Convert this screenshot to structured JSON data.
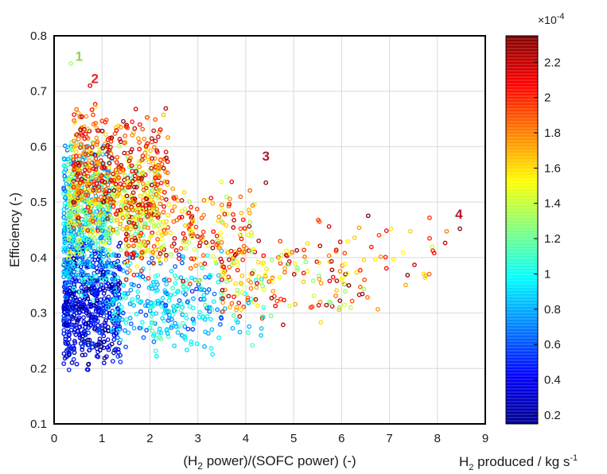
{
  "chart_data": {
    "type": "scatter",
    "title": "",
    "xlabel": {
      "pre": "(H",
      "sub": "2",
      "post": " power)/(SOFC power) (-)"
    },
    "ylabel": "Efficiency (-)",
    "xlim": [
      0,
      9
    ],
    "ylim": [
      0.1,
      0.8
    ],
    "xticks": [
      "0",
      "1",
      "2",
      "3",
      "4",
      "5",
      "6",
      "7",
      "8",
      "9"
    ],
    "yticks": [
      "0.1",
      "0.2",
      "0.3",
      "0.4",
      "0.5",
      "0.6",
      "0.7",
      "0.8"
    ],
    "grid": true,
    "colorbar": {
      "label": {
        "pre": "H",
        "sub": "2",
        "mid": " produced / kg s",
        "sup": "-1"
      },
      "exponent": {
        "base": "×10",
        "power": "-4"
      },
      "range": [
        0.15,
        2.35
      ],
      "ticks": [
        "0.2",
        "0.4",
        "0.6",
        "0.8",
        "1",
        "1.2",
        "1.4",
        "1.6",
        "1.8",
        "2",
        "2.2"
      ],
      "colormap": "jet"
    },
    "annotations": [
      {
        "text": "1",
        "x": 0.52,
        "y": 0.755,
        "color": "#8fd14f"
      },
      {
        "text": "2",
        "x": 0.85,
        "y": 0.715,
        "color": "#e8252a"
      },
      {
        "text": "3",
        "x": 4.42,
        "y": 0.575,
        "color": "#b2182b"
      },
      {
        "text": "4",
        "x": 8.45,
        "y": 0.47,
        "color": "#b2182b"
      }
    ],
    "highlight_points": [
      {
        "x": 0.35,
        "y": 0.75,
        "c": 1.3
      },
      {
        "x": 0.75,
        "y": 0.71,
        "c": 2.2
      },
      {
        "x": 4.42,
        "y": 0.535,
        "c": 2.3
      },
      {
        "x": 8.47,
        "y": 0.452,
        "c": 2.35
      }
    ],
    "points_note": "dense scatter cloud (~2500 runs)",
    "point_clusters": [
      {
        "x_range": [
          0.2,
          1.4
        ],
        "y_range": [
          0.19,
          0.44
        ],
        "c_range": [
          0.15,
          0.6
        ],
        "n": 600
      },
      {
        "x_range": [
          0.2,
          1.2
        ],
        "y_range": [
          0.3,
          0.62
        ],
        "c_range": [
          0.6,
          1.1
        ],
        "n": 450
      },
      {
        "x_range": [
          0.3,
          2.2
        ],
        "y_range": [
          0.38,
          0.62
        ],
        "c_range": [
          1.1,
          1.6
        ],
        "n": 380
      },
      {
        "x_range": [
          0.4,
          2.4
        ],
        "y_range": [
          0.44,
          0.68
        ],
        "c_range": [
          1.6,
          2.35
        ],
        "n": 420
      },
      {
        "x_range": [
          1.2,
          3.5
        ],
        "y_range": [
          0.22,
          0.42
        ],
        "c_range": [
          0.5,
          1.1
        ],
        "n": 220
      },
      {
        "x_range": [
          2.0,
          4.4
        ],
        "y_range": [
          0.22,
          0.38
        ],
        "c_range": [
          0.8,
          1.2
        ],
        "n": 90
      },
      {
        "x_range": [
          1.5,
          4.2
        ],
        "y_range": [
          0.34,
          0.55
        ],
        "c_range": [
          1.3,
          2.3
        ],
        "n": 280
      },
      {
        "x_range": [
          3.5,
          6.5
        ],
        "y_range": [
          0.27,
          0.45
        ],
        "c_range": [
          1.2,
          2.35
        ],
        "n": 150
      },
      {
        "x_range": [
          5.5,
          8.2
        ],
        "y_range": [
          0.28,
          0.5
        ],
        "c_range": [
          1.4,
          2.35
        ],
        "n": 55
      }
    ]
  }
}
